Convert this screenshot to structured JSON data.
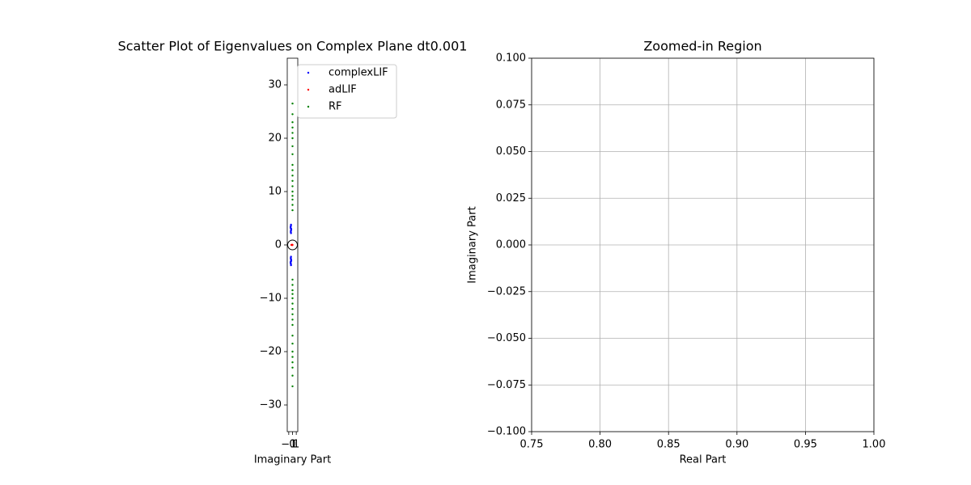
{
  "chart_data": [
    {
      "type": "scatter",
      "title": "Scatter Plot of Eigenvalues on Complex Plane dt0.001",
      "xlabel": "Imaginary Part",
      "xlim": [
        -1.4,
        1.4
      ],
      "ylim": [
        -35,
        35
      ],
      "xticks": [
        {
          "value": -1,
          "label": "−1"
        },
        0,
        1
      ],
      "yticks": [
        {
          "value": -30,
          "label": "−30"
        },
        {
          "value": -20,
          "label": "−20"
        },
        {
          "value": -10,
          "label": "−10"
        },
        0,
        10,
        20,
        30
      ],
      "grid": false,
      "unit_circle": true,
      "legend": "outside upper right",
      "series": [
        {
          "name": "complexLIF",
          "color": "#0000ff",
          "x": [
            -0.4,
            -0.45,
            -0.35,
            -0.5,
            -0.4,
            -0.45,
            -0.35,
            -0.5,
            -0.42,
            -0.38,
            -0.4,
            -0.45,
            -0.35,
            -0.5,
            -0.4,
            -0.45,
            -0.35,
            -0.5,
            -0.42,
            -0.38
          ],
          "values": [
            2.2,
            2.6,
            3.0,
            3.4,
            3.8,
            2.4,
            2.8,
            3.2,
            3.6,
            3.0,
            -2.2,
            -2.6,
            -3.0,
            -3.4,
            -3.8,
            -2.4,
            -2.8,
            -3.2,
            -3.6,
            -3.0
          ]
        },
        {
          "name": "adLIF",
          "color": "#ff0000",
          "x": [
            -0.3,
            -0.2,
            -0.1,
            -0.05,
            0
          ],
          "values": [
            0,
            0,
            0,
            0,
            0
          ]
        },
        {
          "name": "RF",
          "color": "#008000",
          "x": [
            0,
            0,
            0,
            0,
            0,
            0,
            0,
            0,
            0,
            0,
            0,
            0,
            0,
            0,
            0,
            0,
            0,
            0,
            0,
            0,
            0,
            0,
            0,
            0,
            0,
            0,
            0,
            0,
            0,
            0,
            0,
            0,
            0,
            0,
            0,
            0
          ],
          "values": [
            6.5,
            7.5,
            8.5,
            9.2,
            10,
            11,
            12,
            13,
            14,
            15,
            17,
            18.5,
            20,
            21,
            22,
            23,
            24.5,
            26.5,
            -6.5,
            -7.5,
            -8.5,
            -9.2,
            -10,
            -11,
            -12,
            -13,
            -14,
            -15,
            -17,
            -18.5,
            -20,
            -21,
            -22,
            -23,
            -24.5,
            -26.5
          ]
        }
      ]
    },
    {
      "type": "scatter",
      "title": "Zoomed-in Region",
      "xlabel": "Real Part",
      "ylabel": "Imaginary Part",
      "xlim": [
        0.75,
        1.0
      ],
      "ylim": [
        -0.1,
        0.1
      ],
      "xticks": [
        {
          "value": 0.75,
          "label": "0.75"
        },
        {
          "value": 0.8,
          "label": "0.80"
        },
        {
          "value": 0.85,
          "label": "0.85"
        },
        {
          "value": 0.9,
          "label": "0.90"
        },
        {
          "value": 0.95,
          "label": "0.95"
        },
        {
          "value": 1.0,
          "label": "1.00"
        }
      ],
      "yticks": [
        {
          "value": -0.1,
          "label": "−0.100"
        },
        {
          "value": -0.075,
          "label": "−0.075"
        },
        {
          "value": -0.05,
          "label": "−0.050"
        },
        {
          "value": -0.025,
          "label": "−0.025"
        },
        {
          "value": 0,
          "label": "0.000"
        },
        {
          "value": 0.025,
          "label": "0.025"
        },
        {
          "value": 0.05,
          "label": "0.050"
        },
        {
          "value": 0.075,
          "label": "0.075"
        },
        {
          "value": 0.1,
          "label": "0.100"
        }
      ],
      "grid": true,
      "series": []
    }
  ]
}
